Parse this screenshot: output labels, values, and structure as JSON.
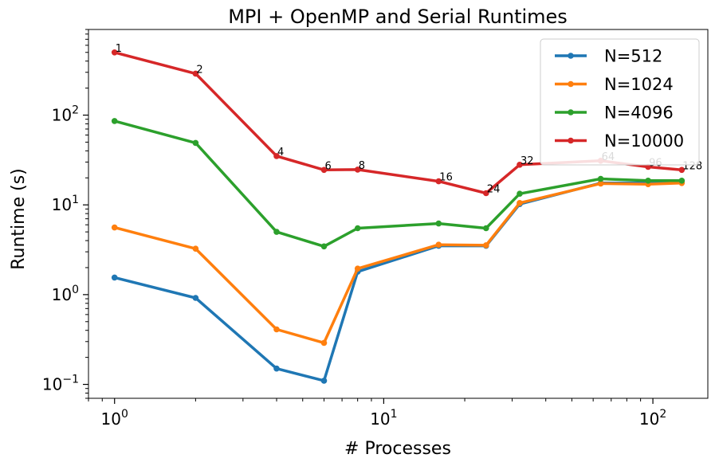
{
  "chart_data": {
    "type": "line",
    "title": "MPI + OpenMP and Serial Runtimes",
    "xlabel": "# Processes",
    "ylabel": "Runtime (s)",
    "xscale": "log",
    "yscale": "log",
    "xlim": [
      0.8,
      160
    ],
    "ylim": [
      0.07,
      900
    ],
    "x_ticks": [
      {
        "value": 1,
        "base": "10",
        "exp": "0"
      },
      {
        "value": 10,
        "base": "10",
        "exp": "1"
      },
      {
        "value": 100,
        "base": "10",
        "exp": "2"
      }
    ],
    "y_ticks": [
      {
        "value": 0.1,
        "base": "10",
        "exp": "−1"
      },
      {
        "value": 1,
        "base": "10",
        "exp": "0"
      },
      {
        "value": 10,
        "base": "10",
        "exp": "1"
      },
      {
        "value": 100,
        "base": "10",
        "exp": "2"
      }
    ],
    "x": [
      1,
      2,
      4,
      6,
      8,
      16,
      24,
      32,
      64,
      96,
      128
    ],
    "series": [
      {
        "name": "N=512",
        "color": "#1f77b4",
        "values": [
          1.55,
          0.92,
          0.15,
          0.11,
          1.8,
          3.5,
          3.5,
          10.2,
          17.5,
          17.5,
          17.8
        ]
      },
      {
        "name": "N=1024",
        "color": "#ff7f0e",
        "values": [
          5.6,
          3.25,
          0.41,
          0.29,
          1.95,
          3.6,
          3.55,
          10.5,
          17.3,
          17.0,
          17.5
        ]
      },
      {
        "name": "N=4096",
        "color": "#2ca02c",
        "values": [
          86,
          49,
          5.0,
          3.45,
          5.5,
          6.2,
          5.5,
          13.3,
          19.5,
          18.6,
          18.6
        ]
      },
      {
        "name": "N=10000",
        "color": "#d62728",
        "values": [
          500,
          290,
          35,
          24.5,
          24.7,
          18.3,
          13.5,
          28,
          31,
          26.5,
          24.5
        ]
      }
    ],
    "annotations": [
      "1",
      "2",
      "4",
      "6",
      "8",
      "16",
      "24",
      "32",
      "64",
      "96",
      "128"
    ],
    "legend": "top-right",
    "grid": false
  }
}
